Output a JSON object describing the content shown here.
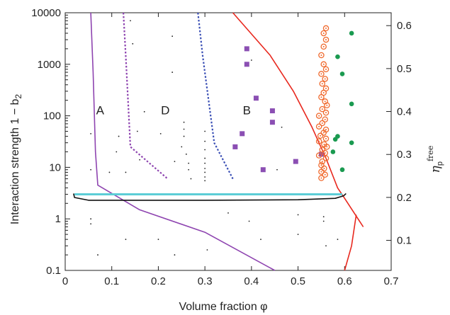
{
  "chart_data": {
    "type": "scatter",
    "title": "",
    "xlabel": "Volume fraction φ",
    "ylabel": "Interaction strength 1 − b",
    "ylabel_sub": "2",
    "y2label_main": "η",
    "y2label_sub": "p",
    "y2label_sup": "free",
    "xlim": [
      0,
      0.7
    ],
    "ylim": [
      0.1,
      10000
    ],
    "yscale": "log",
    "y2lim": [
      0.03,
      0.63
    ],
    "x_ticks": [
      "0",
      "0.1",
      "0.2",
      "0.3",
      "0.4",
      "0.5",
      "0.6",
      "0.7"
    ],
    "x_tick_values": [
      0,
      0.1,
      0.2,
      0.3,
      0.4,
      0.5,
      0.6,
      0.7
    ],
    "y_ticks": [
      "0.1",
      "1",
      "10",
      "100",
      "1000",
      "10000"
    ],
    "y_tick_values": [
      0.1,
      1,
      10,
      100,
      1000,
      10000
    ],
    "y2_ticks": [
      "0.1",
      "0.2",
      "0.3",
      "0.4",
      "0.5",
      "0.6"
    ],
    "y2_tick_values": [
      0.1,
      0.2,
      0.3,
      0.4,
      0.5,
      0.6
    ],
    "region_labels": [
      {
        "text": "A",
        "x": 0.075,
        "y": 130
      },
      {
        "text": "D",
        "x": 0.215,
        "y": 130
      },
      {
        "text": "B",
        "x": 0.39,
        "y": 130
      }
    ],
    "colors": {
      "purple": "#8e44b0",
      "blue": "#3a4fb5",
      "red": "#e8281e",
      "orange": "#f06a2e",
      "green": "#1a9a50",
      "cyan": "#5ccdd6",
      "black": "#111111",
      "square": "#8b4fb3"
    },
    "series": [
      {
        "style": "solid",
        "color_key": "purple",
        "points": [
          [
            0.055,
            10000
          ],
          [
            0.06,
            700
          ],
          [
            0.065,
            20
          ],
          [
            0.07,
            4.5
          ],
          [
            0.16,
            1.5
          ],
          [
            0.3,
            0.55
          ],
          [
            0.45,
            0.1
          ]
        ]
      },
      {
        "style": "dotted",
        "color_key": "purple",
        "points": [
          [
            0.125,
            10000
          ],
          [
            0.13,
            1500
          ],
          [
            0.14,
            25
          ],
          [
            0.22,
            6
          ]
        ]
      },
      {
        "style": "dotted",
        "color_key": "blue",
        "points": [
          [
            0.285,
            10000
          ],
          [
            0.295,
            1500
          ],
          [
            0.32,
            30
          ],
          [
            0.36,
            6
          ]
        ]
      },
      {
        "style": "solid",
        "color_key": "red",
        "points": [
          [
            0.36,
            10000
          ],
          [
            0.44,
            1500
          ],
          [
            0.49,
            300
          ],
          [
            0.53,
            60
          ],
          [
            0.56,
            15
          ],
          [
            0.585,
            4
          ],
          [
            0.6,
            2.5
          ],
          [
            0.64,
            0.7
          ]
        ]
      },
      {
        "style": "solid",
        "color_key": "red",
        "points": [
          [
            0.6,
            0.1
          ],
          [
            0.615,
            0.3
          ],
          [
            0.625,
            1.2
          ]
        ]
      },
      {
        "style": "solid",
        "color_key": "cyan",
        "width": 3,
        "points": [
          [
            0.02,
            3.0
          ],
          [
            0.595,
            3.0
          ]
        ]
      },
      {
        "style": "solid",
        "color_key": "black",
        "points": [
          [
            0.018,
            3.1
          ],
          [
            0.02,
            2.6
          ],
          [
            0.05,
            2.3
          ],
          [
            0.3,
            2.3
          ],
          [
            0.5,
            2.35
          ],
          [
            0.58,
            2.5
          ],
          [
            0.598,
            2.8
          ],
          [
            0.603,
            3.1
          ]
        ]
      }
    ],
    "squares": [
      [
        0.39,
        2000
      ],
      [
        0.39,
        1000
      ],
      [
        0.41,
        220
      ],
      [
        0.445,
        125
      ],
      [
        0.445,
        75
      ],
      [
        0.38,
        45
      ],
      [
        0.365,
        25
      ],
      [
        0.425,
        9
      ],
      [
        0.495,
        13
      ],
      [
        0.55,
        18
      ]
    ],
    "open_circles": [
      [
        0.56,
        5000
      ],
      [
        0.555,
        4000
      ],
      [
        0.56,
        3000
      ],
      [
        0.555,
        2200
      ],
      [
        0.55,
        1500
      ],
      [
        0.555,
        1000
      ],
      [
        0.56,
        800
      ],
      [
        0.55,
        650
      ],
      [
        0.558,
        520
      ],
      [
        0.552,
        420
      ],
      [
        0.56,
        340
      ],
      [
        0.555,
        280
      ],
      [
        0.55,
        230
      ],
      [
        0.558,
        190
      ],
      [
        0.562,
        160
      ],
      [
        0.552,
        135
      ],
      [
        0.56,
        115
      ],
      [
        0.545,
        100
      ],
      [
        0.558,
        85
      ],
      [
        0.552,
        72
      ],
      [
        0.545,
        62
      ],
      [
        0.56,
        54
      ],
      [
        0.555,
        47
      ],
      [
        0.548,
        41
      ],
      [
        0.56,
        36
      ],
      [
        0.545,
        32
      ],
      [
        0.556,
        28
      ],
      [
        0.562,
        25
      ],
      [
        0.552,
        22
      ],
      [
        0.558,
        19
      ],
      [
        0.545,
        17
      ],
      [
        0.56,
        15
      ],
      [
        0.552,
        13
      ],
      [
        0.55,
        11
      ],
      [
        0.556,
        9.5
      ],
      [
        0.55,
        8.2
      ],
      [
        0.558,
        7.2
      ],
      [
        0.55,
        6.2
      ]
    ],
    "filled_circles": [
      [
        0.615,
        4000
      ],
      [
        0.585,
        1400
      ],
      [
        0.595,
        650
      ],
      [
        0.615,
        170
      ],
      [
        0.585,
        40
      ],
      [
        0.58,
        35
      ],
      [
        0.575,
        20
      ],
      [
        0.615,
        30
      ],
      [
        0.595,
        9
      ]
    ],
    "dots": [
      [
        0.055,
        45
      ],
      [
        0.055,
        9
      ],
      [
        0.055,
        1
      ],
      [
        0.055,
        0.8
      ],
      [
        0.07,
        0.2
      ],
      [
        0.095,
        8
      ],
      [
        0.11,
        20
      ],
      [
        0.115,
        40
      ],
      [
        0.13,
        8
      ],
      [
        0.14,
        7000
      ],
      [
        0.145,
        2500
      ],
      [
        0.13,
        0.4
      ],
      [
        0.155,
        50
      ],
      [
        0.16,
        14
      ],
      [
        0.17,
        120
      ],
      [
        0.2,
        0.4
      ],
      [
        0.205,
        45
      ],
      [
        0.21,
        150
      ],
      [
        0.23,
        3500
      ],
      [
        0.23,
        700
      ],
      [
        0.235,
        13
      ],
      [
        0.235,
        0.2
      ],
      [
        0.25,
        25
      ],
      [
        0.255,
        75
      ],
      [
        0.255,
        55
      ],
      [
        0.255,
        40
      ],
      [
        0.26,
        18
      ],
      [
        0.265,
        12
      ],
      [
        0.265,
        9
      ],
      [
        0.27,
        6
      ],
      [
        0.3,
        50
      ],
      [
        0.3,
        32
      ],
      [
        0.3,
        22
      ],
      [
        0.3,
        15
      ],
      [
        0.3,
        12
      ],
      [
        0.3,
        9.5
      ],
      [
        0.3,
        8
      ],
      [
        0.3,
        6.5
      ],
      [
        0.3,
        5.5
      ],
      [
        0.305,
        0.25
      ],
      [
        0.35,
        1.3
      ],
      [
        0.395,
        0.9
      ],
      [
        0.4,
        1200
      ],
      [
        0.42,
        0.4
      ],
      [
        0.455,
        9
      ],
      [
        0.465,
        60
      ],
      [
        0.5,
        1.2
      ],
      [
        0.5,
        0.5
      ],
      [
        0.555,
        1.1
      ],
      [
        0.555,
        0.9
      ],
      [
        0.56,
        0.3
      ],
      [
        0.585,
        0.4
      ]
    ]
  }
}
